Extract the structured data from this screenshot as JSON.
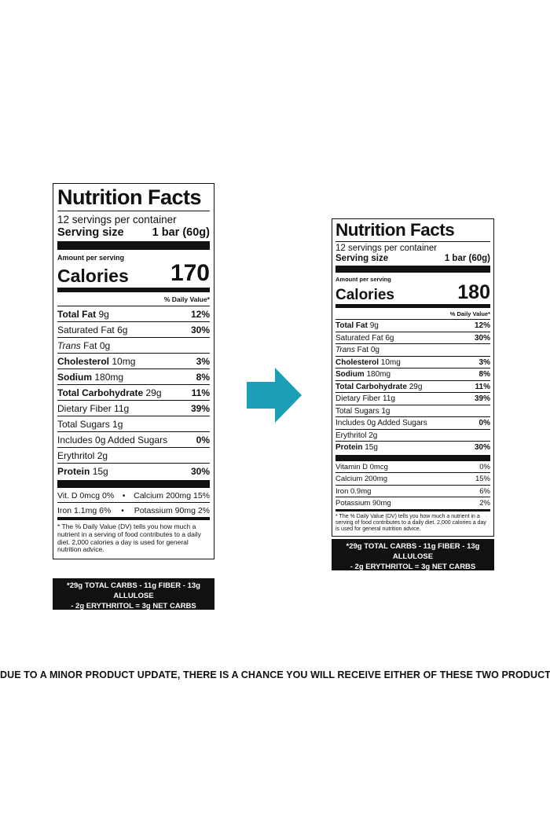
{
  "old_label": {
    "title": "Nutrition Facts",
    "servings_per_container": "12 servings per container",
    "serving_size_label": "Serving size",
    "serving_size_value": "1 bar (60g)",
    "amount_per_serving": "Amount per serving",
    "calories_label": "Calories",
    "calories_value": "170",
    "dv_header": "% Daily Value*",
    "rows": [
      {
        "name": "Total Fat",
        "amount": "9g",
        "dv": "12%"
      },
      {
        "name": "Saturated Fat",
        "amount": "6g",
        "dv": "30%"
      },
      {
        "name": "Trans",
        "amount": "Fat 0g",
        "dv": ""
      },
      {
        "name": "Cholesterol",
        "amount": "10mg",
        "dv": "3%"
      },
      {
        "name": "Sodium",
        "amount": "180mg",
        "dv": "8%"
      },
      {
        "name": "Total Carbohydrate",
        "amount": "29g",
        "dv": "11%"
      },
      {
        "name": "Dietary Fiber",
        "amount": "11g",
        "dv": "39%"
      },
      {
        "name": "Total Sugars",
        "amount": "1g",
        "dv": ""
      },
      {
        "name": "Includes 0g Added Sugars",
        "amount": "",
        "dv": "0%"
      },
      {
        "name": "Erythritol",
        "amount": "2g",
        "dv": ""
      },
      {
        "name": "Protein",
        "amount": "15g",
        "dv": "30%"
      }
    ],
    "vitamins_line1_left": "Vit. D 0mcg 0%",
    "vitamins_line1_sep": "•",
    "vitamins_line1_right": "Calcium 200mg 15%",
    "vitamins_line2_left": "Iron 1.1mg 6%",
    "vitamins_line2_sep": "•",
    "vitamins_line2_right": "Potassium 90mg 2%",
    "footnote": "* The % Daily Value (DV) tells you how much a nutrient in a serving of food contributes to a daily diet. 2,000 calories a day is used for general nutrition advice.",
    "net_carbs_line1": "*29g TOTAL CARBS - 11g FIBER - 13g ALLULOSE",
    "net_carbs_line2": "- 2g ERYTHRITOL = 3g NET CARBS"
  },
  "new_label": {
    "title": "Nutrition Facts",
    "servings_per_container": "12 servings per container",
    "serving_size_label": "Serving size",
    "serving_size_value": "1 bar (60g)",
    "amount_per_serving": "Amount per serving",
    "calories_label": "Calories",
    "calories_value": "180",
    "dv_header": "% Daily Value*",
    "rows": [
      {
        "name": "Total Fat",
        "amount": "9g",
        "dv": "12%"
      },
      {
        "name": "Saturated Fat",
        "amount": "6g",
        "dv": "30%"
      },
      {
        "name": "Trans",
        "amount": "Fat 0g",
        "dv": ""
      },
      {
        "name": "Cholesterol",
        "amount": "10mg",
        "dv": "3%"
      },
      {
        "name": "Sodium",
        "amount": "180mg",
        "dv": "8%"
      },
      {
        "name": "Total Carbohydrate",
        "amount": "29g",
        "dv": "11%"
      },
      {
        "name": "Dietary Fiber",
        "amount": "11g",
        "dv": "39%"
      },
      {
        "name": "Total Sugars",
        "amount": "1g",
        "dv": ""
      },
      {
        "name": "Includes 0g Added Sugars",
        "amount": "",
        "dv": "0%"
      },
      {
        "name": "Erythritol",
        "amount": "2g",
        "dv": ""
      },
      {
        "name": "Protein",
        "amount": "15g",
        "dv": "30%"
      }
    ],
    "minerals": [
      {
        "name": "Vitamin D 0mcg",
        "dv": "0%"
      },
      {
        "name": "Calcium 200mg",
        "dv": "15%"
      },
      {
        "name": "Iron 0.9mg",
        "dv": "6%"
      },
      {
        "name": "Potassium 90mg",
        "dv": "2%"
      }
    ],
    "footnote": "* The % Daily Value (DV) tells you how much a nutrient in a serving of food contributes to a daily diet. 2,000 calories a day is used for general nutrition advice.",
    "net_carbs_line1": "*29g TOTAL CARBS - 11g FIBER - 13g ALLULOSE",
    "net_carbs_line2": "- 2g ERYTHRITOL = 3g NET CARBS"
  },
  "arrow_icon": "right-arrow-icon",
  "arrow_color": "#1a9fb6",
  "notice": "DUE TO A MINOR PRODUCT UPDATE, THERE IS A CHANCE YOU WILL RECEIVE EITHER OF THESE TWO PRODUCTS"
}
